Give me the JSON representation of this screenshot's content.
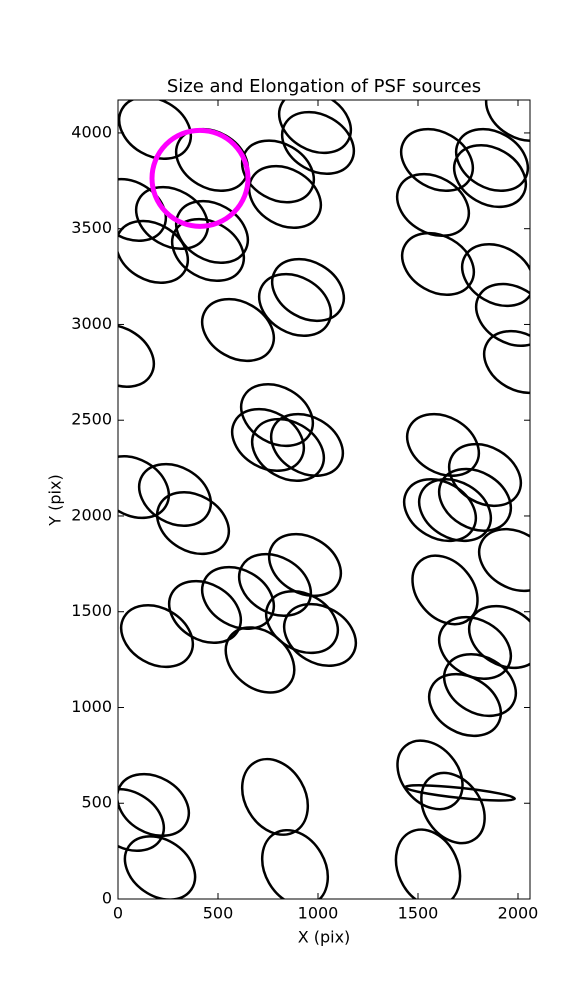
{
  "chart_data": {
    "type": "ellipse",
    "title": "Size and Elongation of PSF sources",
    "xlabel": "X (pix)",
    "ylabel": "Y (pix)",
    "xlim": [
      0,
      2060
    ],
    "ylim": [
      0,
      4172
    ],
    "xticks": [
      0,
      500,
      1000,
      1500,
      2000
    ],
    "yticks": [
      0,
      500,
      1000,
      1500,
      2000,
      2500,
      3000,
      3500,
      4000
    ],
    "series": [
      {
        "color": "#000000",
        "x": [
          185,
          470,
          985,
          1000,
          2020,
          1595,
          1870,
          1860,
          800,
          835,
          60,
          270,
          470,
          170,
          450,
          1575,
          1600,
          1900,
          1970,
          950,
          885,
          600,
          2010,
          0,
          795,
          750,
          945,
          850,
          1625,
          1835,
          1685,
          1785,
          1610,
          75,
          285,
          375,
          1985,
          935,
          785,
          1635,
          600,
          435,
          920,
          1010,
          195,
          1785,
          1935,
          710,
          1810,
          1735,
          1560,
          1710,
          1675,
          175,
          50,
          785,
          210,
          885,
          1550
        ],
        "y": [
          4026,
          3859,
          4057,
          3948,
          4120,
          3859,
          3859,
          3775,
          3799,
          3666,
          3598,
          3556,
          3483,
          3379,
          3389,
          3624,
          3316,
          3258,
          3050,
          3180,
          3102,
          2971,
          2804,
          2836,
          2527,
          2397,
          2371,
          2345,
          2371,
          2214,
          2031,
          2084,
          2031,
          2151,
          2110,
          1963,
          1770,
          1744,
          1640,
          1614,
          1572,
          1499,
          1446,
          1379,
          1373,
          1311,
          1368,
          1248,
          1117,
          1013,
          648,
          554,
          475,
          491,
          413,
          533,
          162,
          162,
          162
        ],
        "width": [
          380,
          380,
          380,
          380,
          380,
          380,
          380,
          380,
          380,
          380,
          380,
          380,
          380,
          380,
          380,
          380,
          380,
          380,
          380,
          380,
          380,
          380,
          380,
          380,
          380,
          380,
          380,
          380,
          380,
          380,
          380,
          380,
          380,
          380,
          380,
          380,
          380,
          380,
          380,
          380,
          380,
          380,
          380,
          380,
          380,
          380,
          380,
          380,
          380,
          380,
          380,
          550,
          380,
          380,
          380,
          400,
          380,
          400,
          400
        ],
        "height": [
          280,
          280,
          280,
          280,
          280,
          280,
          280,
          280,
          280,
          280,
          280,
          280,
          280,
          280,
          280,
          280,
          280,
          280,
          280,
          280,
          280,
          280,
          280,
          280,
          280,
          280,
          280,
          280,
          280,
          280,
          280,
          280,
          280,
          280,
          280,
          280,
          280,
          280,
          280,
          280,
          280,
          280,
          280,
          280,
          280,
          280,
          280,
          280,
          280,
          280,
          280,
          50,
          280,
          280,
          280,
          300,
          280,
          300,
          300
        ],
        "angle": [
          -30,
          -30,
          -30,
          -30,
          -30,
          -30,
          -30,
          -30,
          -30,
          -30,
          -30,
          -30,
          -30,
          -30,
          -30,
          -30,
          -30,
          -30,
          -30,
          -30,
          -30,
          -30,
          -30,
          -30,
          -30,
          -30,
          -30,
          -30,
          -30,
          -30,
          -30,
          -30,
          -30,
          -30,
          -30,
          -30,
          -30,
          -30,
          -30,
          -50,
          -30,
          -30,
          -30,
          -30,
          -30,
          -30,
          -30,
          -40,
          -30,
          -30,
          -50,
          -6,
          -55,
          -30,
          -30,
          -60,
          -35,
          -60,
          -65
        ]
      },
      {
        "color": "#ff00ff",
        "x": [
          410
        ],
        "y": [
          3763
        ],
        "width": [
          480
        ],
        "height": [
          480
        ],
        "angle": [
          0
        ]
      }
    ]
  }
}
